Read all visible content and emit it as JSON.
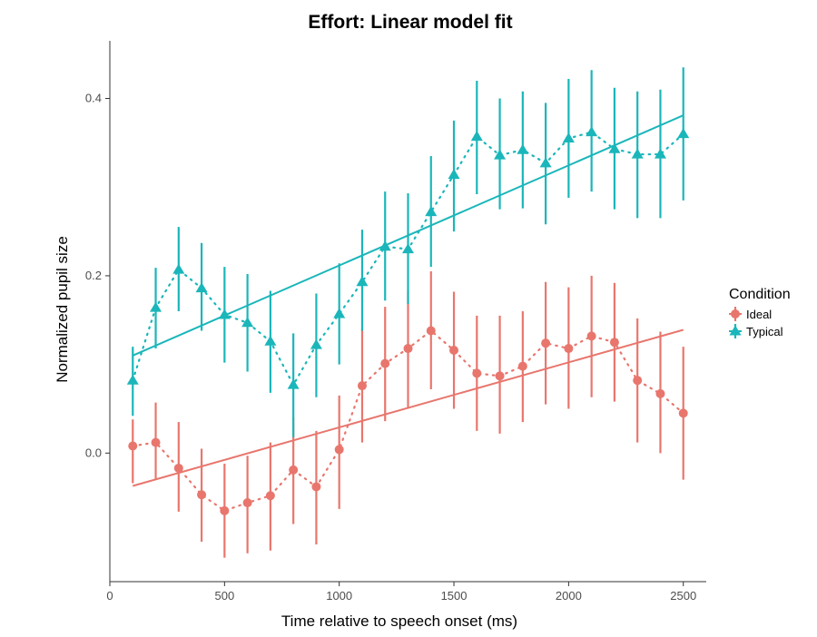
{
  "chart_data": {
    "type": "line",
    "title": "Effort: Linear model fit",
    "xlabel": "Time relative to speech onset (ms)",
    "ylabel": "Normalized pupil size",
    "xlim": [
      0,
      2600
    ],
    "ylim": [
      -0.145,
      0.465
    ],
    "x_ticks": [
      0,
      500,
      1000,
      1500,
      2000,
      2500
    ],
    "x_tick_labels": [
      "0",
      "500",
      "1000",
      "1500",
      "2000",
      "2500"
    ],
    "y_ticks": [
      0.0,
      0.2,
      0.4
    ],
    "y_tick_labels": [
      "0.0",
      "0.2",
      "0.4"
    ],
    "grid": false,
    "legend": {
      "title": "Condition",
      "position": "right"
    },
    "x": [
      100,
      200,
      300,
      400,
      500,
      600,
      700,
      800,
      900,
      1000,
      1100,
      1200,
      1300,
      1400,
      1500,
      1600,
      1700,
      1800,
      1900,
      2000,
      2100,
      2200,
      2300,
      2400,
      2500
    ],
    "series": [
      {
        "name": "Ideal",
        "color": "#e8766d",
        "marker": "circle",
        "values": [
          0.008,
          0.012,
          -0.017,
          -0.047,
          -0.065,
          -0.056,
          -0.048,
          -0.019,
          -0.038,
          0.004,
          0.076,
          0.101,
          0.118,
          0.138,
          0.116,
          0.09,
          0.087,
          0.098,
          0.124,
          0.118,
          0.132,
          0.125,
          0.082,
          0.067,
          0.045
        ],
        "err_lower": [
          -0.034,
          -0.03,
          -0.066,
          -0.1,
          -0.118,
          -0.113,
          -0.11,
          -0.08,
          -0.103,
          -0.063,
          0.012,
          0.036,
          0.05,
          0.072,
          0.05,
          0.025,
          0.022,
          0.035,
          0.055,
          0.05,
          0.063,
          0.058,
          0.012,
          0.0,
          -0.03
        ],
        "err_upper": [
          0.038,
          0.057,
          0.035,
          0.005,
          -0.012,
          -0.003,
          0.012,
          0.04,
          0.025,
          0.065,
          0.14,
          0.165,
          0.183,
          0.205,
          0.182,
          0.155,
          0.155,
          0.16,
          0.193,
          0.187,
          0.2,
          0.192,
          0.152,
          0.137,
          0.12
        ],
        "fit": {
          "x": [
            100,
            2500
          ],
          "y": [
            -0.037,
            0.139
          ]
        }
      },
      {
        "name": "Typical",
        "color": "#1ab6ba",
        "marker": "triangle",
        "values": [
          0.082,
          0.164,
          0.207,
          0.186,
          0.156,
          0.147,
          0.126,
          0.077,
          0.122,
          0.157,
          0.193,
          0.233,
          0.23,
          0.272,
          0.314,
          0.357,
          0.336,
          0.342,
          0.327,
          0.355,
          0.362,
          0.343,
          0.337,
          0.337,
          0.36
        ],
        "err_lower": [
          0.042,
          0.118,
          0.16,
          0.138,
          0.102,
          0.092,
          0.068,
          0.018,
          0.063,
          0.1,
          0.138,
          0.172,
          0.168,
          0.21,
          0.25,
          0.292,
          0.275,
          0.276,
          0.258,
          0.288,
          0.295,
          0.275,
          0.265,
          0.265,
          0.285
        ],
        "err_upper": [
          0.12,
          0.209,
          0.255,
          0.237,
          0.21,
          0.202,
          0.183,
          0.135,
          0.18,
          0.214,
          0.252,
          0.295,
          0.293,
          0.335,
          0.375,
          0.42,
          0.4,
          0.408,
          0.395,
          0.422,
          0.432,
          0.412,
          0.408,
          0.41,
          0.435
        ],
        "fit": {
          "x": [
            100,
            2500
          ],
          "y": [
            0.11,
            0.381
          ]
        }
      }
    ]
  }
}
